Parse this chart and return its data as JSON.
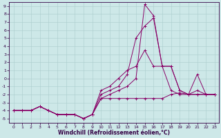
{
  "xlabel": "Windchill (Refroidissement éolien,°C)",
  "background_color": "#cde8e8",
  "grid_color": "#aacccc",
  "line_color": "#880066",
  "x_values": [
    0,
    1,
    2,
    3,
    4,
    5,
    6,
    7,
    8,
    9,
    10,
    11,
    12,
    13,
    14,
    15,
    16,
    17,
    18,
    19,
    20,
    21,
    22,
    23
  ],
  "series": [
    [
      -4,
      -4,
      -4,
      -3.5,
      -4,
      -4.5,
      -4.5,
      -4.5,
      -5,
      -4.5,
      -2.5,
      -2,
      -1.5,
      -1,
      0,
      9.2,
      7.8,
      1.5,
      1.5,
      -1.5,
      -2,
      -2,
      -2,
      -2
    ],
    [
      -4,
      -4,
      -4,
      -3.5,
      -4,
      -4.5,
      -4.5,
      -4.5,
      -5,
      -4.5,
      -2,
      -1.5,
      -1,
      0.5,
      5,
      6.5,
      7.5,
      1.5,
      1.5,
      -1.5,
      -2,
      -2,
      -2,
      -2
    ],
    [
      -4,
      -4,
      -4,
      -3.5,
      -4,
      -4.5,
      -4.5,
      -4.5,
      -5,
      -4.5,
      -1.5,
      -1,
      0,
      1,
      1.5,
      3.5,
      1.5,
      1.5,
      -1.5,
      -2,
      -2,
      0.5,
      -2,
      -2
    ],
    [
      -4,
      -4,
      -4,
      -3.5,
      -4,
      -4.5,
      -4.5,
      -4.5,
      -5,
      -4.5,
      -2.5,
      -2.5,
      -2.5,
      -2.5,
      -2.5,
      -2.5,
      -2.5,
      -2.5,
      -2,
      -1.8,
      -2,
      -1.5,
      -2,
      -2
    ]
  ],
  "ylim": [
    -5.5,
    9.5
  ],
  "xlim": [
    -0.5,
    23.5
  ],
  "yticks": [
    -5,
    -4,
    -3,
    -2,
    -1,
    0,
    1,
    2,
    3,
    4,
    5,
    6,
    7,
    8,
    9
  ],
  "xticks": [
    0,
    1,
    2,
    3,
    4,
    5,
    6,
    7,
    8,
    9,
    10,
    11,
    12,
    13,
    14,
    15,
    16,
    17,
    18,
    19,
    20,
    21,
    22,
    23
  ]
}
